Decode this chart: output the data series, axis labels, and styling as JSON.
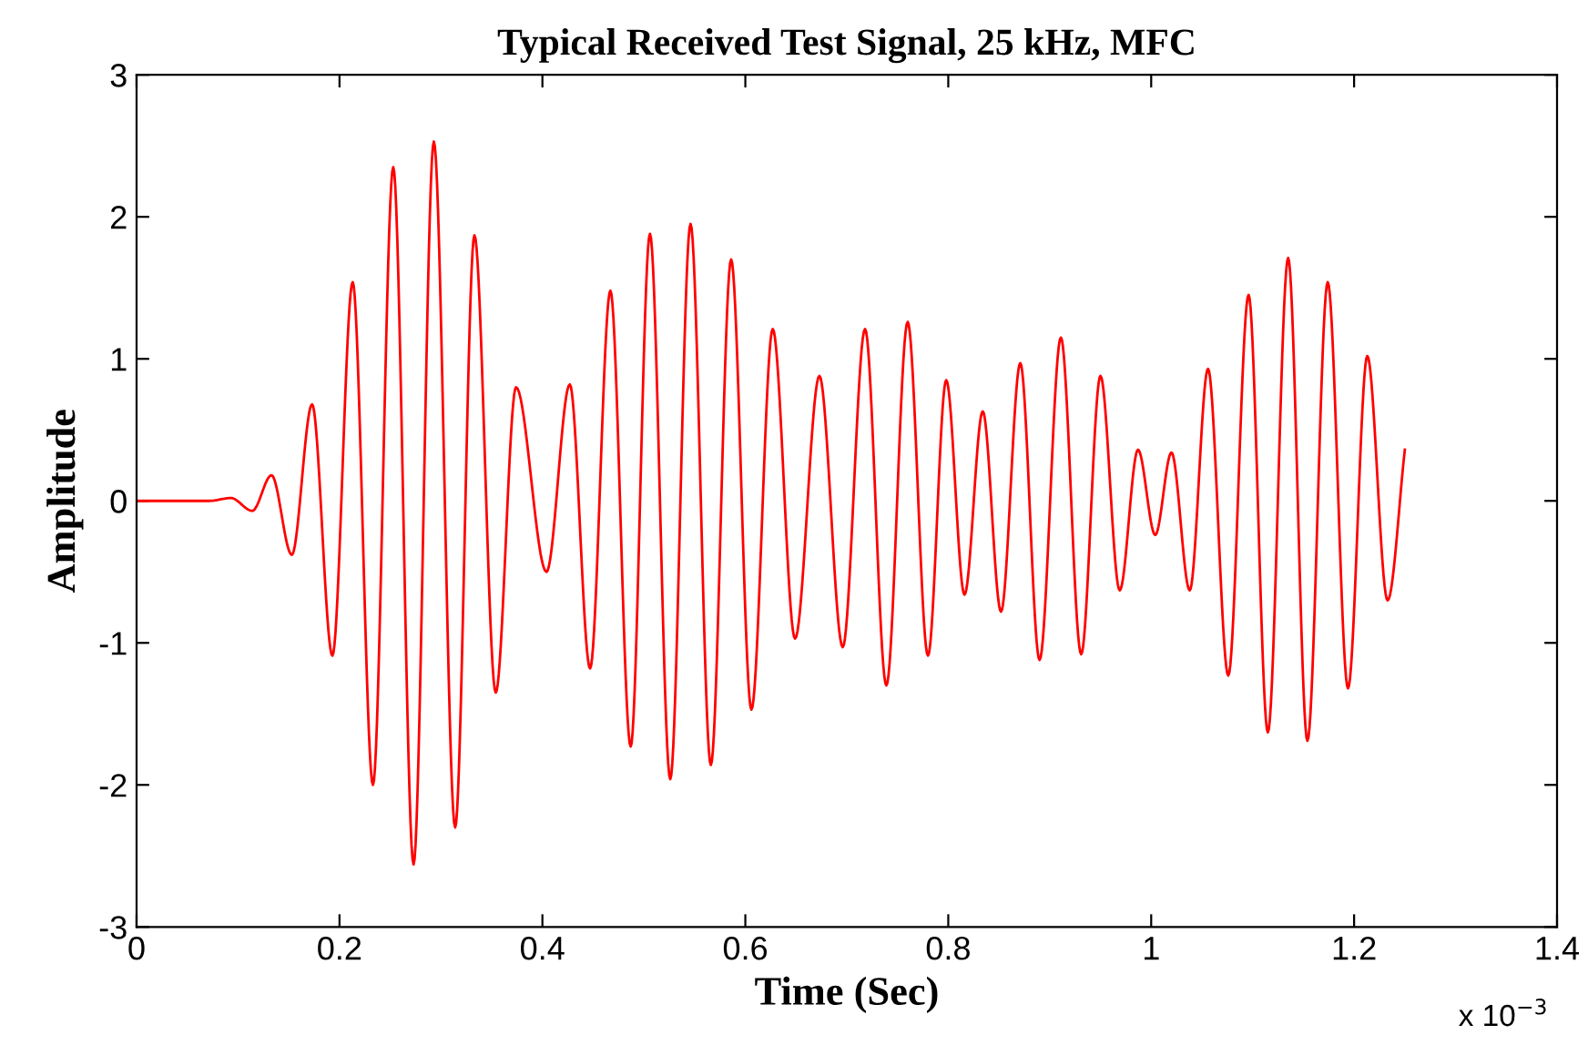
{
  "chart_data": {
    "type": "line",
    "title": "Typical Received Test Signal, 25 kHz, MFC",
    "xlabel": "Time (Sec)",
    "ylabel": "Amplitude",
    "annotations": [
      "x 10$^{−3}$"
    ],
    "series": [
      {
        "color": "#ff0000",
        "x": [
          0,
          0.072,
          0.093,
          0.114,
          0.133,
          0.153,
          0.173,
          0.193,
          0.213,
          0.233,
          0.253,
          0.273,
          0.293,
          0.314,
          0.333,
          0.354,
          0.374,
          0.404,
          0.427,
          0.447,
          0.467,
          0.487,
          0.506,
          0.526,
          0.546,
          0.566,
          0.586,
          0.606,
          0.627,
          0.649,
          0.673,
          0.696,
          0.718,
          0.739,
          0.76,
          0.78,
          0.798,
          0.816,
          0.834,
          0.852,
          0.871,
          0.89,
          0.911,
          0.931,
          0.95,
          0.969,
          0.987,
          1.004,
          1.02,
          1.038,
          1.056,
          1.076,
          1.096,
          1.115,
          1.135,
          1.154,
          1.174,
          1.194,
          1.213,
          1.233,
          1.25
        ],
        "values": [
          0,
          0,
          0.02,
          -0.07,
          0.18,
          -0.38,
          0.68,
          -1.09,
          1.54,
          -2.0,
          2.35,
          -2.56,
          2.53,
          -2.3,
          1.87,
          -1.35,
          0.8,
          -0.5,
          0.82,
          -1.18,
          1.48,
          -1.73,
          1.88,
          -1.96,
          1.95,
          -1.86,
          1.7,
          -1.47,
          1.21,
          -0.97,
          0.88,
          -1.03,
          1.21,
          -1.3,
          1.26,
          -1.09,
          0.85,
          -0.66,
          0.63,
          -0.78,
          0.97,
          -1.12,
          1.15,
          -1.08,
          0.88,
          -0.63,
          0.36,
          -0.24,
          0.34,
          -0.63,
          0.93,
          -1.23,
          1.45,
          -1.63,
          1.71,
          -1.69,
          1.54,
          -1.32,
          1.02,
          -0.7,
          0.36
        ]
      }
    ],
    "xlim": [
      0,
      1.4
    ],
    "xticks": [
      0,
      0.2,
      0.4,
      0.6,
      0.8,
      1,
      1.2,
      1.4
    ],
    "ylim": [
      -3,
      3
    ],
    "yticks": [
      -3,
      -2,
      -1,
      0,
      1,
      2,
      3
    ],
    "grid": false,
    "marker": "none",
    "line_style": "solid"
  }
}
